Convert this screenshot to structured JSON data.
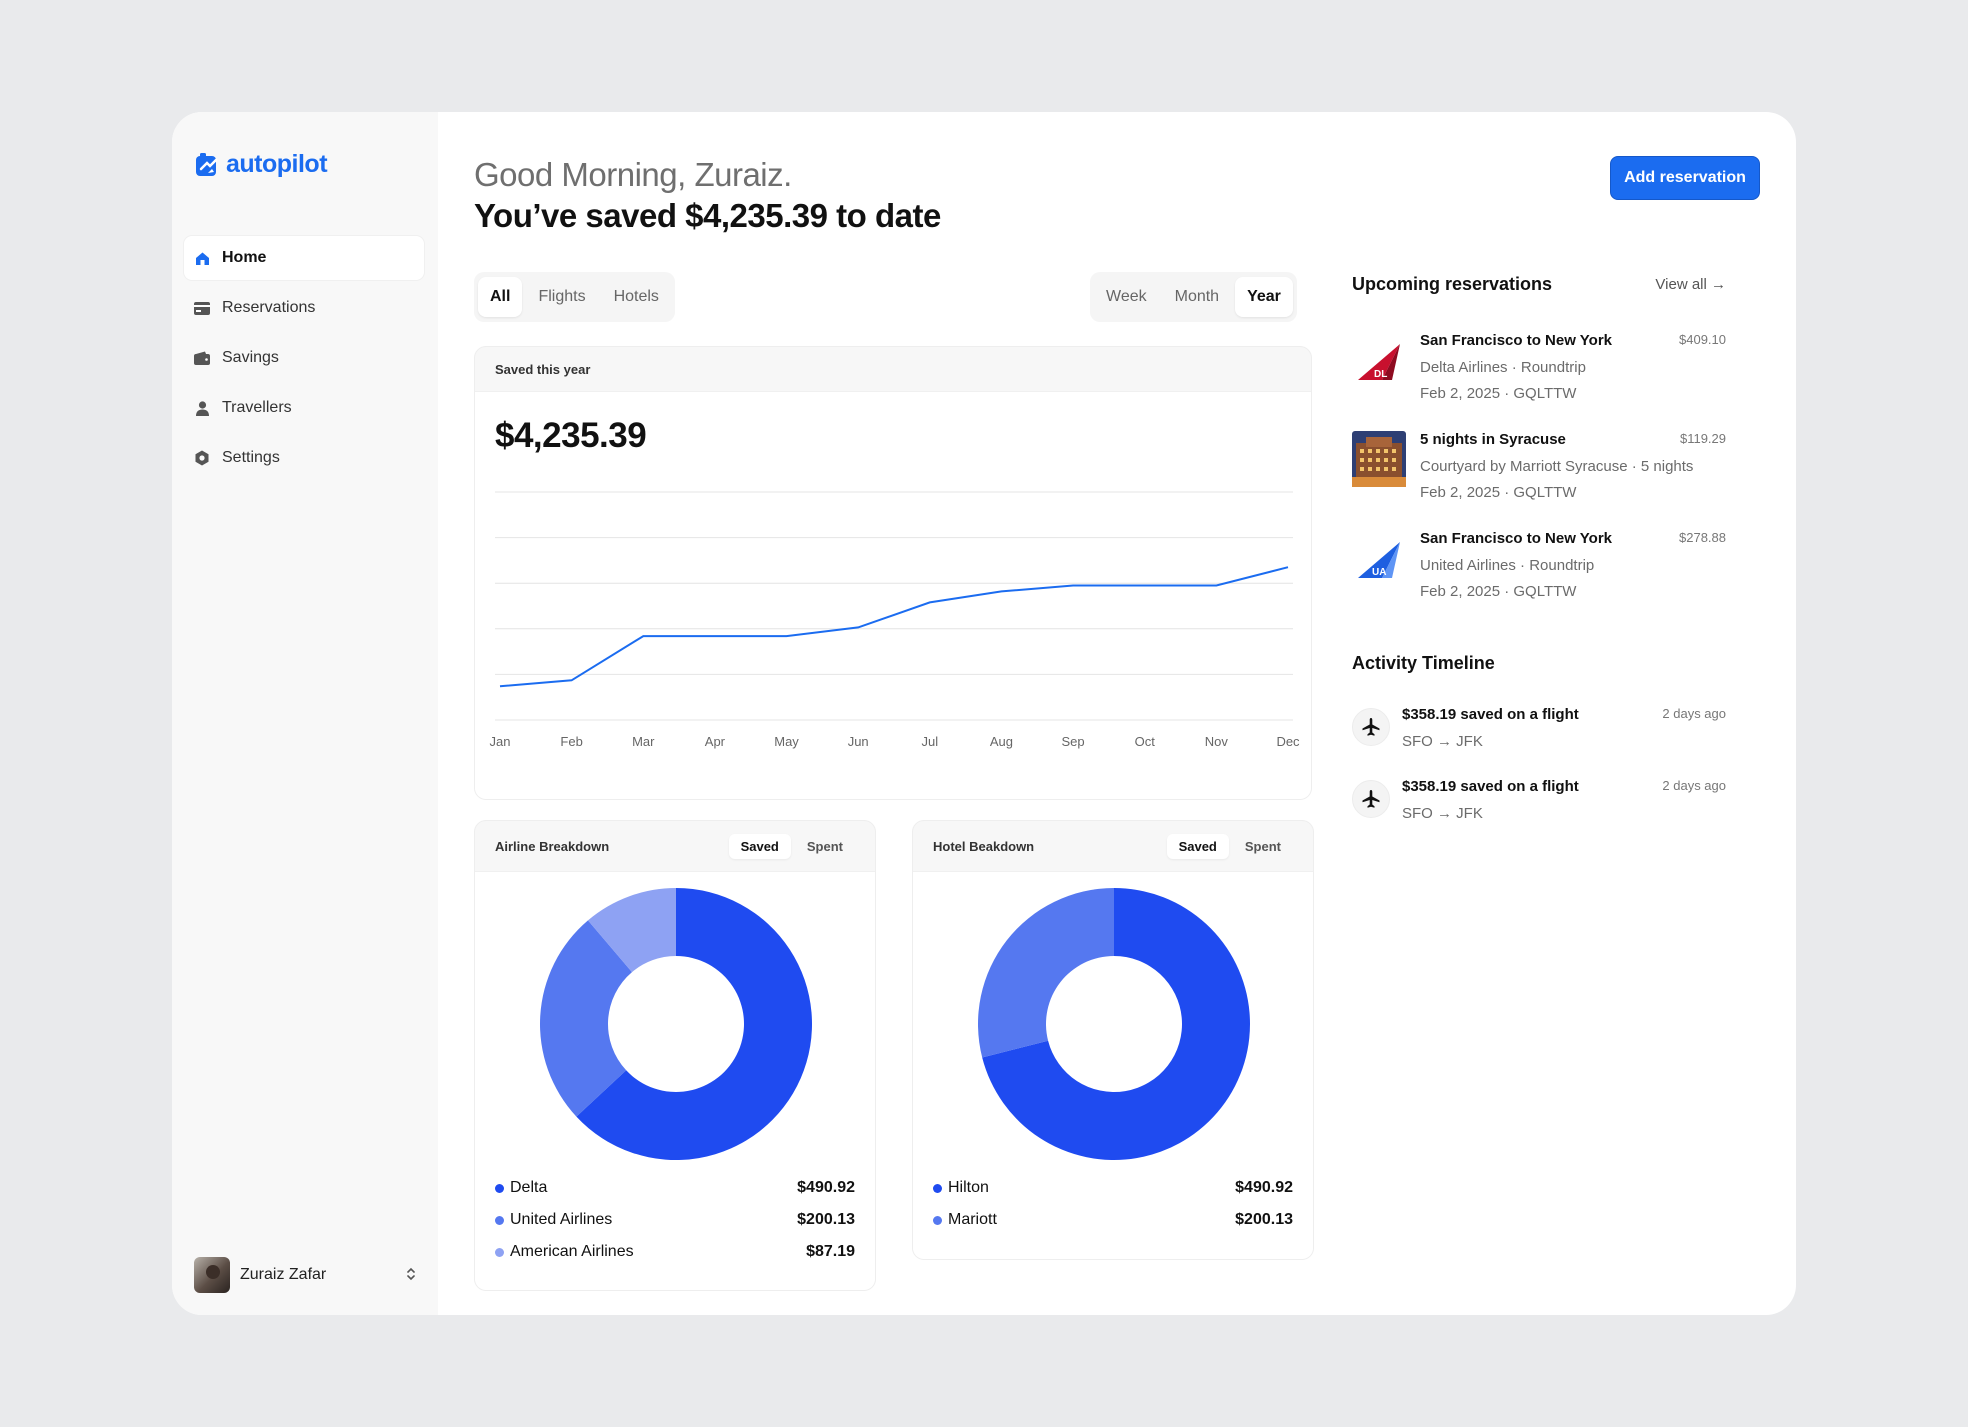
{
  "brand": {
    "name": "autopilot",
    "color": "#1b6cf0"
  },
  "sidebar": {
    "items": [
      {
        "label": "Home",
        "icon": "home-icon",
        "active": true
      },
      {
        "label": "Reservations",
        "icon": "card-icon"
      },
      {
        "label": "Savings",
        "icon": "wallet-icon"
      },
      {
        "label": "Travellers",
        "icon": "person-icon"
      },
      {
        "label": "Settings",
        "icon": "gear-icon"
      }
    ],
    "user": {
      "name": "Zuraiz Zafar"
    }
  },
  "header": {
    "greeting": "Good Morning, Zuraiz.",
    "saved_line": "You’ve saved $4,235.39 to date",
    "add_button": "Add reservation"
  },
  "filters": {
    "type_tabs": [
      "All",
      "Flights",
      "Hotels"
    ],
    "type_active": "All",
    "period_tabs": [
      "Week",
      "Month",
      "Year"
    ],
    "period_active": "Year"
  },
  "saved_card": {
    "label": "Saved this year",
    "amount": "$4,235.39"
  },
  "chart_data": [
    {
      "type": "line",
      "categories": [
        "Jan",
        "Feb",
        "Mar",
        "Apr",
        "May",
        "Jun",
        "Jul",
        "Aug",
        "Sep",
        "Oct",
        "Nov",
        "Dec"
      ],
      "series": [
        {
          "values": [
            0.74,
            0.87,
            1.84,
            1.84,
            1.84,
            2.03,
            2.58,
            2.82,
            2.95,
            2.95,
            2.95,
            3.35
          ]
        }
      ],
      "ylim": [
        0,
        5
      ],
      "grid": true,
      "color": "#1b6cf0"
    },
    {
      "type": "pie",
      "title": "Airline Breakdown",
      "labels": [
        "Delta",
        "United Airlines",
        "American Airlines"
      ],
      "values": [
        490.92,
        200.13,
        87.19
      ],
      "colors": [
        "#1f4bf0",
        "#5578f0",
        "#8ea2f3"
      ]
    },
    {
      "type": "pie",
      "title": "Hotel Beakdown",
      "labels": [
        "Hilton",
        "Mariott"
      ],
      "values": [
        490.92,
        200.13
      ],
      "colors": [
        "#1f4bf0",
        "#5578f0"
      ]
    }
  ],
  "breakdowns": {
    "toggle": [
      "Saved",
      "Spent"
    ],
    "airline": {
      "title": "Airline Breakdown",
      "rows": [
        {
          "label": "Delta",
          "value": "$490.92",
          "color": "#1f4bf0"
        },
        {
          "label": "United Airlines",
          "value": "$200.13",
          "color": "#5578f0"
        },
        {
          "label": "American Airlines",
          "value": "$87.19",
          "color": "#8ea2f3"
        }
      ]
    },
    "hotel": {
      "title": "Hotel Beakdown",
      "rows": [
        {
          "label": "Hilton",
          "value": "$490.92",
          "color": "#1f4bf0"
        },
        {
          "label": "Mariott",
          "value": "$200.13",
          "color": "#5578f0"
        }
      ]
    }
  },
  "upcoming": {
    "title": "Upcoming reservations",
    "view_all": "View all →",
    "items": [
      {
        "title": "San Francisco to New York",
        "sub": "Delta Airlines · Roundtrip",
        "sub2": "Feb 2, 2025 · GQLTTW",
        "price": "$409.10",
        "thumb": "delta-logo",
        "badge": "DL"
      },
      {
        "title": "5 nights in Syracuse",
        "sub": "Courtyard by Marriott Syracuse · 5 nights",
        "sub2": "Feb 2, 2025 · GQLTTW",
        "price": "$119.29",
        "thumb": "hotel-photo"
      },
      {
        "title": "San Francisco to New York",
        "sub": "United Airlines · Roundtrip",
        "sub2": "Feb 2, 2025 · GQLTTW",
        "price": "$278.88",
        "thumb": "united-logo",
        "badge": "UA"
      }
    ]
  },
  "activity": {
    "title": "Activity Timeline",
    "items": [
      {
        "title": "$358.19 saved on a flight",
        "sub": "SFO → JFK",
        "time": "2 days ago",
        "icon": "airplane-icon"
      },
      {
        "title": "$358.19 saved on a flight",
        "sub": "SFO → JFK",
        "time": "2 days ago",
        "icon": "airplane-icon"
      }
    ]
  }
}
